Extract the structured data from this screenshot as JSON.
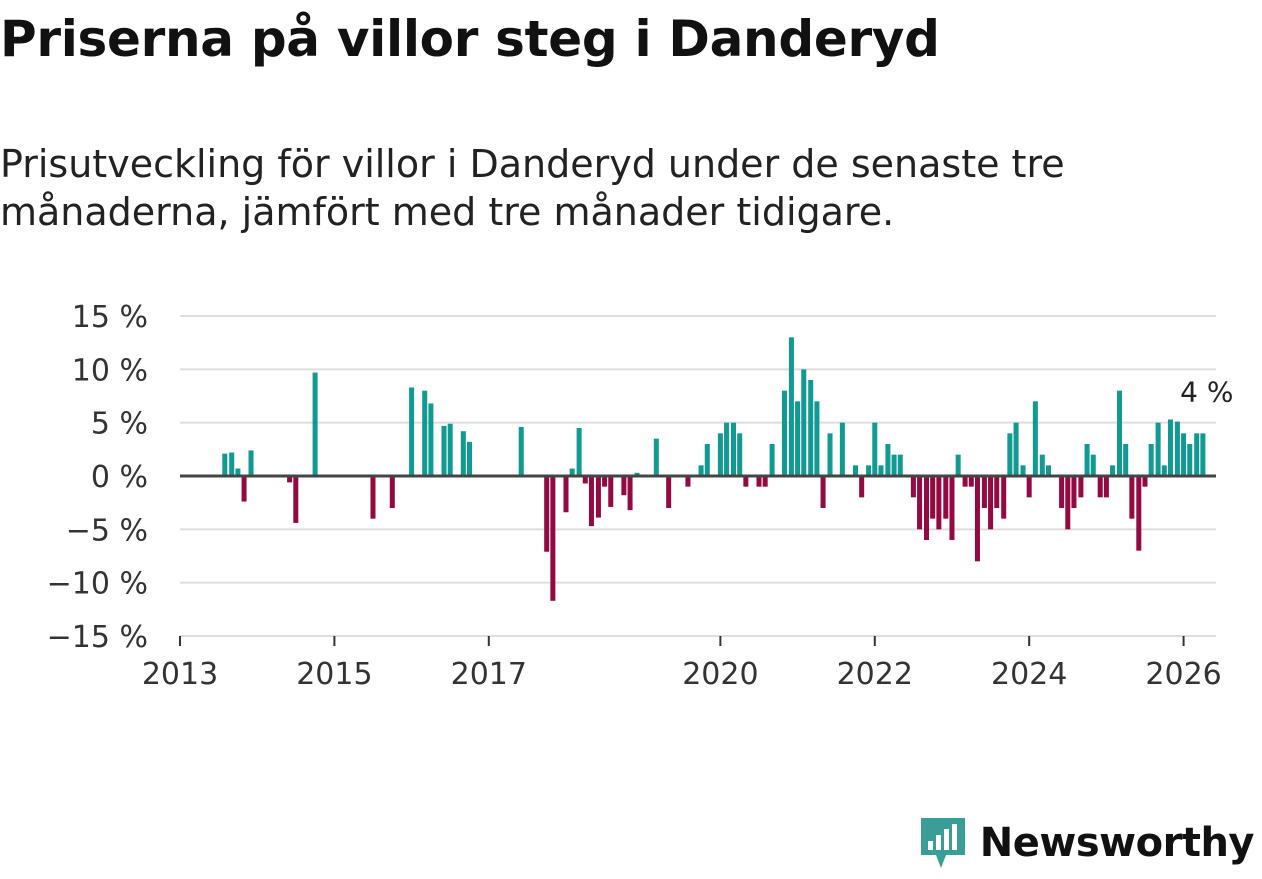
{
  "title": "Priserna på villor steg i Danderyd",
  "subtitle": "Prisutveckling för villor i Danderyd under de senaste tre månaderna, jämfört med tre månader tidigare.",
  "brand": {
    "name": "Newsworthy",
    "icon": "newsworthy-logo-icon",
    "color": "#3a9e96"
  },
  "colors": {
    "positive": "#109a91",
    "negative": "#930a43",
    "zero_line": "#444444",
    "grid": "#dddddd"
  },
  "chart_data": {
    "type": "bar",
    "title": "Priserna på villor steg i Danderyd",
    "xlabel": "",
    "ylabel": "",
    "x_range": [
      2013.0,
      2026.42
    ],
    "ylim": [
      -15,
      15
    ],
    "y_ticks": [
      -15,
      -10,
      -5,
      0,
      5,
      10,
      15
    ],
    "y_tick_labels": [
      "−15 %",
      "−10 %",
      "−5 %",
      "0 %",
      "5 %",
      "10 %",
      "15 %"
    ],
    "x_ticks": [
      2013,
      2015,
      2017,
      2020,
      2022,
      2024,
      2026
    ],
    "x_tick_labels": [
      "2013",
      "2015",
      "2017",
      "2020",
      "2022",
      "2024",
      "2026"
    ],
    "grid": true,
    "annotation": {
      "text": "4 %",
      "x": 2026.12,
      "y": 4
    },
    "series": [
      {
        "name": "Prisutveckling",
        "unit": "%",
        "x": [
          2013.58,
          2013.67,
          2013.75,
          2013.83,
          2013.92,
          2014.42,
          2014.5,
          2014.75,
          2015.5,
          2015.75,
          2016.0,
          2016.17,
          2016.25,
          2016.42,
          2016.5,
          2016.67,
          2016.75,
          2017.42,
          2017.75,
          2017.83,
          2018.0,
          2018.08,
          2018.17,
          2018.25,
          2018.33,
          2018.42,
          2018.5,
          2018.58,
          2018.75,
          2018.83,
          2018.92,
          2019.17,
          2019.33,
          2019.58,
          2019.75,
          2019.83,
          2020.0,
          2020.08,
          2020.17,
          2020.25,
          2020.33,
          2020.5,
          2020.58,
          2020.67,
          2020.83,
          2020.92,
          2021.0,
          2021.08,
          2021.17,
          2021.25,
          2021.33,
          2021.42,
          2021.58,
          2021.75,
          2021.83,
          2021.92,
          2022.0,
          2022.08,
          2022.17,
          2022.25,
          2022.33,
          2022.5,
          2022.58,
          2022.67,
          2022.75,
          2022.83,
          2022.92,
          2023.0,
          2023.08,
          2023.17,
          2023.25,
          2023.33,
          2023.42,
          2023.5,
          2023.58,
          2023.67,
          2023.75,
          2023.83,
          2023.92,
          2024.0,
          2024.08,
          2024.17,
          2024.25,
          2024.42,
          2024.5,
          2024.58,
          2024.67,
          2024.75,
          2024.83,
          2024.92,
          2025.0,
          2025.08,
          2025.17,
          2025.25,
          2025.33,
          2025.42,
          2025.5,
          2025.58,
          2025.67,
          2025.75,
          2025.83,
          2025.92,
          2026.0,
          2026.08,
          2026.17,
          2026.25
        ],
        "values": [
          2.1,
          2.2,
          0.7,
          -2.4,
          2.4,
          -0.6,
          -4.4,
          9.7,
          -4.0,
          -3.0,
          8.3,
          8.0,
          6.8,
          4.7,
          4.9,
          4.2,
          3.2,
          4.6,
          -7.1,
          -11.7,
          -3.4,
          0.7,
          4.5,
          -0.7,
          -4.7,
          -3.9,
          -1.0,
          -2.9,
          -1.8,
          -3.2,
          0.3,
          3.5,
          -3.0,
          -1.0,
          1.0,
          3.0,
          4.0,
          5.0,
          5.0,
          4.0,
          -1.0,
          -1.0,
          -1.0,
          3.0,
          8.0,
          13.0,
          7.0,
          10.0,
          9.0,
          7.0,
          -3.0,
          4.0,
          5.0,
          1.0,
          -2.0,
          1.0,
          5.0,
          1.0,
          3.0,
          2.0,
          2.0,
          -2.0,
          -5.0,
          -6.0,
          -4.0,
          -5.0,
          -4.0,
          -6.0,
          2.0,
          -1.0,
          -1.0,
          -8.0,
          -3.0,
          -5.0,
          -3.0,
          -4.0,
          4.0,
          5.0,
          1.0,
          -2.0,
          7.0,
          2.0,
          1.0,
          -3.0,
          -5.0,
          -3.0,
          -2.0,
          3.0,
          2.0,
          -2.0,
          -2.0,
          1.0,
          8.0,
          3.0,
          -4.0,
          -7.0,
          -1.0,
          3.0,
          5.0,
          1.0,
          5.3,
          5.1,
          4.0,
          3.0,
          4.0,
          4.0
        ]
      }
    ]
  }
}
